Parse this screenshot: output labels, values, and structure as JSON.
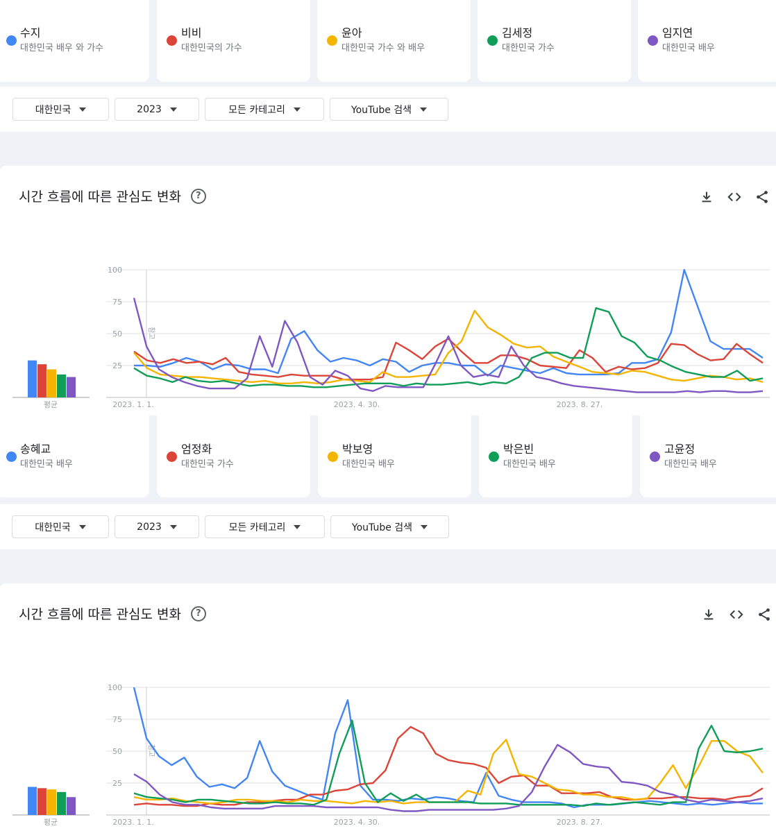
{
  "sections": [
    {
      "terms": [
        {
          "name": "수지",
          "desc": "대한민국 배우 와 가수",
          "color": "#4285f4"
        },
        {
          "name": "비비",
          "desc": "대한민국의 가수",
          "color": "#db4437"
        },
        {
          "name": "윤아",
          "desc": "대한민국 가수 와 배우",
          "color": "#f4b400"
        },
        {
          "name": "김세정",
          "desc": "대한민국 가수",
          "color": "#0f9d58"
        },
        {
          "name": "임지연",
          "desc": "대한민국 배우",
          "color": "#7e57c2"
        }
      ],
      "filters": [
        "대한민국",
        "2023",
        "모든 카테고리",
        "YouTube 검색"
      ],
      "panel_title": "시간 흐름에 따른 관심도 변화",
      "avg_label": "평균",
      "note_label": "참고",
      "chart_data": {
        "type": "line",
        "title": "시간 흐름에 따른 관심도 변화",
        "x_tick_labels": [
          "2023. 1. 1.",
          "2023. 4. 30.",
          "2023. 8. 27."
        ],
        "ylim": [
          0,
          100
        ],
        "y_ticks": [
          25,
          50,
          75,
          100
        ],
        "averages": [
          29,
          26,
          22,
          18,
          16
        ],
        "series": [
          {
            "name": "수지",
            "color": "#4285f4",
            "values": [
              25,
              25,
              24,
              27,
              31,
              28,
              22,
              26,
              25,
              22,
              22,
              19,
              46,
              52,
              37,
              28,
              31,
              29,
              25,
              30,
              28,
              20,
              25,
              27,
              27,
              25,
              25,
              17,
              25,
              23,
              21,
              19,
              23,
              19,
              18,
              18,
              18,
              19,
              27,
              27,
              30,
              51,
              100,
              72,
              44,
              38,
              38,
              38,
              31
            ]
          },
          {
            "name": "비비",
            "color": "#db4437",
            "values": [
              36,
              29,
              27,
              30,
              27,
              28,
              26,
              31,
              20,
              18,
              17,
              16,
              18,
              17,
              17,
              17,
              14,
              14,
              14,
              16,
              43,
              37,
              30,
              40,
              46,
              36,
              27,
              27,
              33,
              33,
              30,
              25,
              24,
              23,
              37,
              31,
              20,
              24,
              22,
              23,
              27,
              42,
              41,
              34,
              29,
              30,
              42,
              34,
              27
            ]
          },
          {
            "name": "윤아",
            "color": "#f4b400",
            "values": [
              35,
              23,
              18,
              17,
              16,
              16,
              15,
              14,
              13,
              12,
              13,
              11,
              11,
              12,
              11,
              12,
              14,
              13,
              12,
              20,
              16,
              16,
              17,
              18,
              35,
              44,
              68,
              55,
              49,
              42,
              39,
              40,
              32,
              28,
              24,
              20,
              19,
              18,
              21,
              20,
              17,
              14,
              13,
              15,
              17,
              16,
              14,
              15,
              12
            ]
          },
          {
            "name": "김세정",
            "color": "#0f9d58",
            "values": [
              23,
              17,
              15,
              12,
              16,
              13,
              12,
              13,
              11,
              9,
              10,
              10,
              9,
              9,
              8,
              8,
              9,
              10,
              11,
              11,
              11,
              9,
              11,
              10,
              10,
              11,
              12,
              10,
              12,
              11,
              16,
              31,
              35,
              35,
              31,
              31,
              70,
              67,
              48,
              43,
              32,
              29,
              24,
              20,
              18,
              16,
              16,
              21,
              13,
              15
            ]
          },
          {
            "name": "임지연",
            "color": "#7e57c2",
            "values": [
              78,
              40,
              22,
              16,
              12,
              9,
              7,
              7,
              7,
              15,
              48,
              24,
              60,
              43,
              16,
              10,
              21,
              17,
              7,
              5,
              9,
              8,
              8,
              8,
              27,
              48,
              25,
              16,
              18,
              16,
              40,
              25,
              16,
              14,
              11,
              9,
              8,
              7,
              6,
              5,
              4,
              4,
              4,
              4,
              5,
              4,
              5,
              5,
              4,
              4,
              5
            ]
          }
        ]
      }
    },
    {
      "terms": [
        {
          "name": "송혜교",
          "desc": "대한민국 배우",
          "color": "#4285f4"
        },
        {
          "name": "엄정화",
          "desc": "대한민국 가수",
          "color": "#db4437"
        },
        {
          "name": "박보영",
          "desc": "대한민국 배우",
          "color": "#f4b400"
        },
        {
          "name": "박은빈",
          "desc": "대한민국 배우",
          "color": "#0f9d58"
        },
        {
          "name": "고윤정",
          "desc": "대한민국 배우",
          "color": "#7e57c2"
        }
      ],
      "filters": [
        "대한민국",
        "2023",
        "모든 카테고리",
        "YouTube 검색"
      ],
      "panel_title": "시간 흐름에 따른 관심도 변화",
      "avg_label": "평균",
      "note_label": "참고",
      "chart_data": {
        "type": "line",
        "title": "시간 흐름에 따른 관심도 변화",
        "x_tick_labels": [
          "2023. 1. 1.",
          "2023. 4. 30.",
          "2023. 8. 27."
        ],
        "ylim": [
          0,
          100
        ],
        "y_ticks": [
          25,
          50,
          75,
          100
        ],
        "averages": [
          22,
          21,
          20,
          18,
          14
        ],
        "series": [
          {
            "name": "송혜교",
            "color": "#4285f4",
            "values": [
              100,
              60,
              46,
              39,
              45,
              30,
              22,
              24,
              21,
              29,
              58,
              34,
              23,
              19,
              15,
              12,
              64,
              90,
              23,
              12,
              12,
              11,
              13,
              12,
              14,
              13,
              11,
              10,
              33,
              15,
              12,
              10,
              10,
              10,
              9,
              6,
              8,
              8,
              8,
              9,
              10,
              11,
              10,
              9,
              8,
              9,
              8,
              9,
              10,
              9,
              9
            ]
          },
          {
            "name": "엄정화",
            "color": "#db4437",
            "values": [
              8,
              9,
              8,
              8,
              7,
              7,
              9,
              8,
              8,
              10,
              10,
              11,
              12,
              12,
              16,
              16,
              19,
              20,
              24,
              25,
              35,
              60,
              69,
              64,
              48,
              43,
              41,
              40,
              37,
              25,
              30,
              31,
              23,
              23,
              17,
              17,
              17,
              18,
              14,
              12,
              12,
              13,
              13,
              14,
              14,
              13,
              13,
              12,
              14,
              15,
              21
            ]
          },
          {
            "name": "박보영",
            "color": "#f4b400",
            "values": [
              14,
              12,
              12,
              13,
              11,
              10,
              9,
              10,
              12,
              12,
              11,
              11,
              10,
              12,
              11,
              11,
              10,
              9,
              11,
              10,
              11,
              9,
              10,
              10,
              10,
              10,
              19,
              16,
              48,
              59,
              32,
              30,
              25,
              20,
              19,
              16,
              16,
              14,
              14,
              12,
              13,
              25,
              39,
              21,
              38,
              58,
              58,
              50,
              46,
              33
            ]
          },
          {
            "name": "박은빈",
            "color": "#0f9d58",
            "values": [
              17,
              14,
              13,
              12,
              10,
              12,
              12,
              11,
              10,
              9,
              9,
              10,
              9,
              9,
              8,
              12,
              48,
              74,
              25,
              10,
              17,
              11,
              16,
              10,
              10,
              10,
              10,
              9,
              9,
              9,
              8,
              8,
              8,
              8,
              8,
              7,
              9,
              8,
              9,
              10,
              9,
              8,
              10,
              10,
              52,
              70,
              50,
              49,
              50,
              52
            ]
          },
          {
            "name": "고윤정",
            "color": "#7e57c2",
            "values": [
              32,
              26,
              16,
              10,
              8,
              8,
              6,
              5,
              5,
              5,
              5,
              7,
              7,
              7,
              7,
              6,
              6,
              6,
              6,
              6,
              4,
              3,
              3,
              4,
              4,
              4,
              4,
              4,
              4,
              5,
              7,
              18,
              38,
              55,
              49,
              40,
              38,
              37,
              26,
              25,
              23,
              18,
              16,
              12,
              10,
              12,
              11,
              10,
              11,
              13
            ]
          }
        ]
      }
    }
  ]
}
